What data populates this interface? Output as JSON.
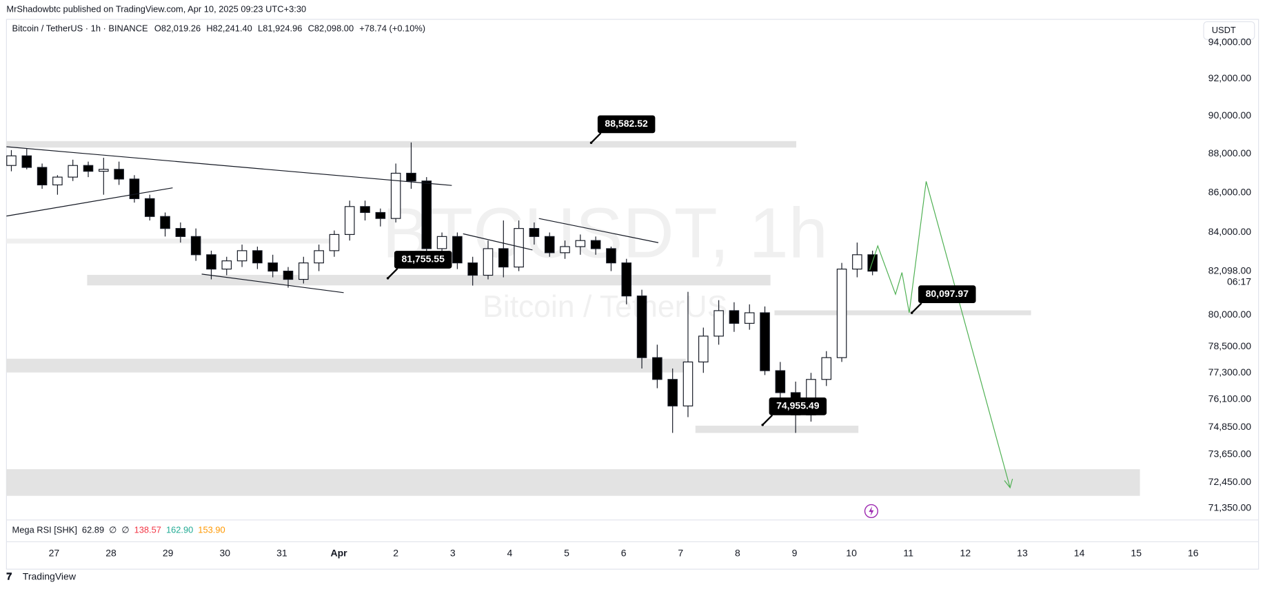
{
  "publisher": "MrShadowbtc published on TradingView.com, Apr 10, 2025 09:23 UTC+3:30",
  "footer_logo": "TradingView",
  "currency_button": "USDT",
  "chart_data": {
    "type": "candlestick",
    "title": "Bitcoin / TetherUS · 1h · BINANCE",
    "legend_values": [
      "O82,019.26",
      "H82,241.40",
      "L81,924.96",
      "C82,098.00",
      "+78.74 (+0.10%)"
    ],
    "watermark": [
      "BTCUSDT, 1h",
      "Bitcoin / TetherUS"
    ],
    "log_scale": true,
    "grid": false,
    "up_color": "#ffffff",
    "down_color": "#000000",
    "x": [
      -0.75,
      -0.48,
      -0.21,
      0.06,
      0.33,
      0.6,
      0.87,
      1.14,
      1.41,
      1.68,
      1.95,
      2.22,
      2.49,
      2.76,
      3.03,
      3.3,
      3.57,
      3.84,
      4.11,
      4.38,
      4.65,
      4.92,
      5.19,
      5.46,
      5.73,
      6,
      6.27,
      6.54,
      6.81,
      7.08,
      7.35,
      7.62,
      7.89,
      8.16,
      8.43,
      8.7,
      8.97,
      9.24,
      9.51,
      9.78,
      10.05,
      10.32,
      10.59,
      10.86,
      11.13,
      11.4,
      11.67,
      11.94,
      12.21,
      12.48,
      12.75,
      13.02,
      13.29,
      13.56,
      13.83,
      14.1,
      14.37
    ],
    "open": [
      87400,
      87900,
      87300,
      86400,
      86800,
      87400,
      87100,
      87200,
      86700,
      85700,
      84800,
      84200,
      83800,
      82900,
      82200,
      82600,
      83100,
      82500,
      82100,
      81700,
      82500,
      83100,
      83900,
      85300,
      85000,
      84700,
      87000,
      86600,
      83200,
      83800,
      82500,
      81900,
      83200,
      82300,
      84200,
      83800,
      83000,
      83300,
      83600,
      83200,
      82500,
      80900,
      78000,
      77000,
      75800,
      77800,
      79000,
      80200,
      79600,
      80100,
      77400,
      76400,
      75400,
      77000,
      78000,
      82200,
      82900
    ],
    "high": [
      88200,
      88300,
      87500,
      86900,
      87700,
      87600,
      87800,
      87600,
      86900,
      85900,
      85000,
      84500,
      84200,
      83100,
      82800,
      83400,
      83300,
      82900,
      82300,
      82800,
      83400,
      84100,
      85600,
      85600,
      85200,
      87500,
      88600,
      86800,
      84000,
      84000,
      82800,
      83600,
      84600,
      84600,
      84500,
      84000,
      83600,
      83900,
      83800,
      83300,
      82700,
      81200,
      78600,
      77500,
      81100,
      79400,
      80700,
      80600,
      80500,
      80400,
      77800,
      76900,
      77300,
      78300,
      82500,
      83500,
      83100
    ],
    "low": [
      87100,
      87200,
      86200,
      85900,
      86600,
      86800,
      85900,
      86400,
      85500,
      84600,
      83800,
      83500,
      82600,
      81700,
      81900,
      82300,
      82200,
      81800,
      81300,
      81500,
      82100,
      82800,
      83600,
      84600,
      84300,
      84500,
      86200,
      82500,
      82400,
      82200,
      81400,
      81700,
      81800,
      82100,
      83400,
      82800,
      82700,
      82900,
      82900,
      82100,
      80500,
      77500,
      76600,
      74600,
      75300,
      77300,
      78600,
      79200,
      79300,
      77200,
      75800,
      74600,
      75100,
      76700,
      77800,
      81800,
      81900
    ],
    "close": [
      87900,
      87300,
      86400,
      86800,
      87400,
      87100,
      87200,
      86700,
      85700,
      84800,
      84200,
      83800,
      82900,
      82200,
      82600,
      83100,
      82500,
      82100,
      81700,
      82500,
      83100,
      83900,
      85300,
      85000,
      84700,
      87000,
      86600,
      83200,
      83800,
      82500,
      81900,
      83200,
      82300,
      84200,
      83800,
      83000,
      83300,
      83600,
      83200,
      82500,
      80900,
      78000,
      77000,
      75800,
      77800,
      79000,
      80200,
      79600,
      80100,
      77400,
      76400,
      75400,
      77000,
      78000,
      82200,
      82900,
      82098
    ],
    "xlim": [
      -0.836,
      20.156
    ],
    "xticks": [
      {
        "value": 0,
        "label": "27"
      },
      {
        "value": 1,
        "label": "28"
      },
      {
        "value": 2,
        "label": "29"
      },
      {
        "value": 3,
        "label": "30"
      },
      {
        "value": 4,
        "label": "31"
      },
      {
        "value": 5,
        "label": "Apr"
      },
      {
        "value": 6,
        "label": "2"
      },
      {
        "value": 7,
        "label": "3"
      },
      {
        "value": 8,
        "label": "4"
      },
      {
        "value": 9,
        "label": "5"
      },
      {
        "value": 10,
        "label": "6"
      },
      {
        "value": 11,
        "label": "7"
      },
      {
        "value": 12,
        "label": "8"
      },
      {
        "value": 13,
        "label": "9"
      },
      {
        "value": 14,
        "label": "10"
      },
      {
        "value": 15,
        "label": "11"
      },
      {
        "value": 16,
        "label": "12"
      },
      {
        "value": 17,
        "label": "13"
      },
      {
        "value": 18,
        "label": "14"
      },
      {
        "value": 19,
        "label": "15"
      },
      {
        "value": 20,
        "label": "16"
      }
    ],
    "ylim": [
      70850,
      95300
    ],
    "yticks": [
      {
        "value": 94000,
        "label": "94,000.00"
      },
      {
        "value": 92000,
        "label": "92,000.00"
      },
      {
        "value": 90000,
        "label": "90,000.00"
      },
      {
        "value": 88000,
        "label": "88,000.00"
      },
      {
        "value": 86000,
        "label": "86,000.00"
      },
      {
        "value": 84000,
        "label": "84,000.00"
      },
      {
        "value": 80000,
        "label": "80,000.00"
      },
      {
        "value": 78500,
        "label": "78,500.00"
      },
      {
        "value": 77300,
        "label": "77,300.00"
      },
      {
        "value": 76100,
        "label": "76,100.00"
      },
      {
        "value": 74850,
        "label": "74,850.00"
      },
      {
        "value": 73650,
        "label": "73,650.00"
      },
      {
        "value": 72450,
        "label": "72,450.00"
      },
      {
        "value": 71350,
        "label": "71,350.00"
      }
    ],
    "last_price": {
      "value": 82098,
      "label": "82,098.00"
    },
    "countdown": "06:17",
    "annotations": [
      {
        "x": 9.43,
        "value": 88582.52,
        "label": "88,582.52"
      },
      {
        "x": 5.86,
        "value": 81755.55,
        "label": "81,755.55"
      },
      {
        "x": 12.44,
        "value": 74955.49,
        "label": "74,955.49"
      },
      {
        "x": 15.06,
        "value": 80097.97,
        "label": "80,097.97"
      }
    ],
    "indicator": {
      "name": "Mega RSI [SHK]",
      "values": [
        "62.89",
        "∅",
        "∅",
        "138.57",
        "162.90",
        "153.90"
      ],
      "colors": [
        "#131722",
        "#131722",
        "#131722",
        "#f23645",
        "#22ab94",
        "#ff9800"
      ]
    }
  }
}
